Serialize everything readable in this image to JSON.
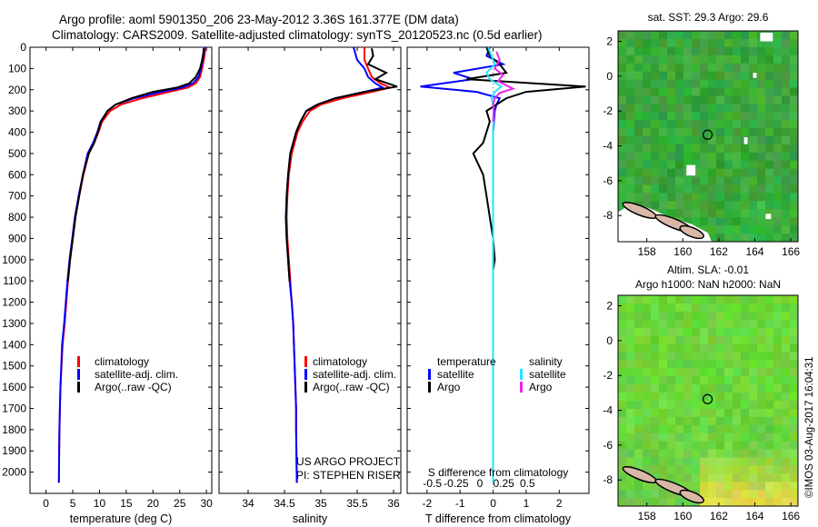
{
  "title_line1": "Argo profile: aoml 5901350_206 23-May-2012 3.36S 161.377E (DM data)",
  "title_line2": "Climatology: CARS2009. Satellite-adjusted climatology: synTS_20120523.nc (0.5d earlier)",
  "footer_credit": "©IMOS 03-Aug-2017 16:04:31",
  "colors": {
    "climatology": "#ff0000",
    "satellite": "#0000ff",
    "argo": "#000000",
    "sal_satellite": "#22e5ff",
    "sal_argo": "#ee22ee"
  },
  "chart_data": [
    {
      "type": "line",
      "xlabel": "temperature (deg C)",
      "ylabel": "",
      "xlim": [
        -3,
        31
      ],
      "ylim": [
        2100,
        0
      ],
      "y_reversed": true,
      "xticks": [
        0,
        5,
        10,
        15,
        20,
        25,
        30
      ],
      "yticks": [
        0,
        100,
        200,
        300,
        400,
        500,
        600,
        700,
        800,
        900,
        1000,
        1100,
        1200,
        1300,
        1400,
        1500,
        1600,
        1700,
        1800,
        1900,
        2000
      ],
      "legend": {
        "entries": [
          "climatology",
          "satellite-adj. clim.",
          "Argo(..raw -QC)"
        ],
        "placement": "lower-right"
      },
      "series": [
        {
          "name": "climatology",
          "x": [
            29.8,
            29.7,
            29.5,
            29.2,
            28.8,
            28.0,
            26.5,
            23.0,
            18.0,
            14.0,
            12.0,
            10.5,
            9.8,
            9.0,
            8.0,
            7.0,
            6.2,
            5.5,
            5.0,
            4.5,
            4.1,
            3.8,
            3.5,
            3.1,
            2.9,
            2.7,
            2.6,
            2.5,
            2.45,
            2.4
          ],
          "y": [
            0,
            30,
            60,
            100,
            140,
            170,
            190,
            210,
            240,
            270,
            300,
            350,
            400,
            450,
            500,
            600,
            700,
            800,
            900,
            1000,
            1100,
            1200,
            1300,
            1400,
            1500,
            1600,
            1700,
            1800,
            1900,
            2050
          ]
        },
        {
          "name": "satellite-adj. clim.",
          "x": [
            29.6,
            29.5,
            29.3,
            29.0,
            28.5,
            27.5,
            25.5,
            21.5,
            16.5,
            13.0,
            11.5,
            10.2,
            9.6,
            8.8,
            7.8,
            6.9,
            6.1,
            5.4,
            4.9,
            4.4,
            4.0,
            3.7,
            3.4,
            3.0,
            2.85,
            2.7,
            2.6,
            2.5,
            2.45,
            2.4
          ],
          "y": [
            0,
            30,
            60,
            100,
            140,
            170,
            190,
            210,
            240,
            270,
            300,
            350,
            400,
            450,
            500,
            600,
            700,
            800,
            900,
            1000,
            1100,
            1200,
            1300,
            1400,
            1500,
            1600,
            1700,
            1800,
            1900,
            2050
          ]
        },
        {
          "name": "Argo(..raw -QC)",
          "x": [
            29.5,
            29.4,
            29.2,
            28.8,
            28.0,
            26.8,
            24.5,
            20.0,
            16.0,
            13.0,
            11.5,
            10.3,
            9.7,
            9.0,
            8.0,
            6.9,
            6.2,
            5.5,
            5.0,
            4.5,
            4.1
          ],
          "y": [
            5,
            30,
            60,
            100,
            140,
            170,
            190,
            210,
            240,
            270,
            300,
            350,
            400,
            450,
            500,
            600,
            700,
            800,
            900,
            1000,
            1100
          ]
        }
      ]
    },
    {
      "type": "line",
      "xlabel": "salinity",
      "xlim": [
        33.6,
        36.1
      ],
      "ylim": [
        2100,
        0
      ],
      "xticks": [
        34,
        34.5,
        35,
        35.5,
        36
      ],
      "legend": {
        "entries": [
          "climatology",
          "satellite-adj. clim.",
          "Argo(..raw -QC)"
        ],
        "placement": "lower-right"
      },
      "annotations": [
        "US ARGO PROJECT",
        "PI: STEPHEN RISER"
      ],
      "series": [
        {
          "name": "climatology",
          "x": [
            35.6,
            35.6,
            35.65,
            35.7,
            35.82,
            35.95,
            35.7,
            35.3,
            35.0,
            34.85,
            34.75,
            34.68,
            34.64,
            34.6,
            34.56,
            34.54,
            34.53,
            34.54,
            34.56,
            34.58,
            34.6,
            34.62,
            34.63,
            34.64,
            34.65,
            34.66,
            34.66,
            34.67
          ],
          "y": [
            0,
            60,
            100,
            140,
            170,
            190,
            210,
            240,
            270,
            300,
            350,
            400,
            450,
            500,
            600,
            700,
            800,
            900,
            1000,
            1100,
            1200,
            1300,
            1400,
            1500,
            1600,
            1700,
            1800,
            2050
          ]
        },
        {
          "name": "satellite-adj. clim.",
          "x": [
            35.45,
            35.5,
            35.6,
            35.65,
            35.75,
            35.85,
            35.6,
            35.2,
            34.95,
            34.8,
            34.72,
            34.66,
            34.62,
            34.58,
            34.55,
            34.53,
            34.52,
            34.53,
            34.55,
            34.57,
            34.6,
            34.62,
            34.63,
            34.64,
            34.65,
            34.66,
            34.66,
            34.67
          ],
          "y": [
            0,
            60,
            100,
            140,
            170,
            190,
            210,
            240,
            270,
            300,
            350,
            400,
            450,
            500,
            600,
            700,
            800,
            900,
            1000,
            1100,
            1200,
            1300,
            1400,
            1500,
            1600,
            1700,
            1800,
            2050
          ]
        },
        {
          "name": "Argo(..raw -QC)",
          "x": [
            35.7,
            35.72,
            35.65,
            35.9,
            35.75,
            36.05,
            35.6,
            35.2,
            34.95,
            34.8,
            34.72,
            34.66,
            34.62,
            34.58,
            34.55,
            34.53,
            34.52,
            34.53,
            34.55,
            34.57
          ],
          "y": [
            5,
            40,
            80,
            120,
            150,
            185,
            210,
            240,
            270,
            300,
            350,
            400,
            450,
            500,
            600,
            700,
            800,
            900,
            1000,
            1100
          ]
        }
      ]
    },
    {
      "type": "line",
      "xlabel": "T difference from climatology",
      "xlabel_top": "S difference from climatology",
      "xlim": [
        -2.6,
        2.9
      ],
      "xticks": [
        -2,
        -1,
        0,
        1,
        2
      ],
      "xticks_top": [
        -0.5,
        -0.25,
        0,
        0.25,
        0.5
      ],
      "ylim": [
        2100,
        0
      ],
      "legend": {
        "entries": [
          "temperature",
          "satellite",
          "Argo",
          "salinity",
          "satellite",
          "Argo"
        ],
        "placement": "lower-center"
      },
      "series": [
        {
          "name": "T satellite",
          "x": [
            -0.1,
            -0.2,
            0.3,
            -1.2,
            -0.6,
            -2.2,
            -0.5,
            0.2,
            0.1,
            0.05,
            0,
            0,
            0,
            0,
            0,
            0
          ],
          "y": [
            0,
            40,
            80,
            120,
            150,
            185,
            210,
            240,
            270,
            300,
            400,
            600,
            800,
            1000,
            1500,
            2050
          ]
        },
        {
          "name": "T Argo",
          "x": [
            -0.2,
            -0.1,
            0.2,
            0.4,
            -0.8,
            2.8,
            1.0,
            0.4,
            0.1,
            -0.2,
            -0.1,
            -0.3,
            -0.6,
            -0.3,
            -0.2,
            0,
            0.05,
            0
          ],
          "y": [
            0,
            40,
            80,
            120,
            150,
            185,
            210,
            240,
            270,
            300,
            350,
            450,
            500,
            600,
            700,
            900,
            1000,
            1050
          ]
        },
        {
          "name": "S satellite",
          "x": [
            -0.15,
            -0.05,
            0.05,
            -0.2,
            -0.1,
            0.25,
            0.05,
            -0.05,
            0,
            0.02,
            0,
            0,
            0,
            0,
            0
          ],
          "y": [
            0,
            40,
            80,
            120,
            150,
            185,
            210,
            240,
            270,
            300,
            400,
            600,
            800,
            1200,
            2050
          ]
        },
        {
          "name": "S Argo",
          "x": [
            0.1,
            0.2,
            0.05,
            0.3,
            0.15,
            0.6,
            0.2,
            0.05,
            0,
            0.02,
            0
          ],
          "y": [
            20,
            60,
            100,
            130,
            160,
            195,
            215,
            240,
            270,
            300,
            350
          ]
        }
      ]
    },
    {
      "type": "heatmap",
      "title": "sat. SST: 29.3 Argo: 29.6",
      "xticks": [
        158,
        160,
        162,
        164,
        166
      ],
      "yticks": [
        2,
        0,
        -2,
        -4,
        -6,
        -8
      ],
      "xlim": [
        156.4,
        166.4
      ],
      "ylim": [
        -9.5,
        2.6
      ],
      "marker": {
        "lon": 161.377,
        "lat": -3.36
      }
    },
    {
      "type": "heatmap",
      "title": "Altim. SLA: -0.01",
      "subtitle": "Argo h1000: NaN h2000: NaN",
      "xticks": [
        158,
        160,
        162,
        164,
        166
      ],
      "yticks": [
        2,
        0,
        -2,
        -4,
        -6,
        -8
      ],
      "xlim": [
        156.4,
        166.4
      ],
      "ylim": [
        -9.5,
        2.6
      ],
      "marker": {
        "lon": 161.377,
        "lat": -3.36
      }
    }
  ]
}
